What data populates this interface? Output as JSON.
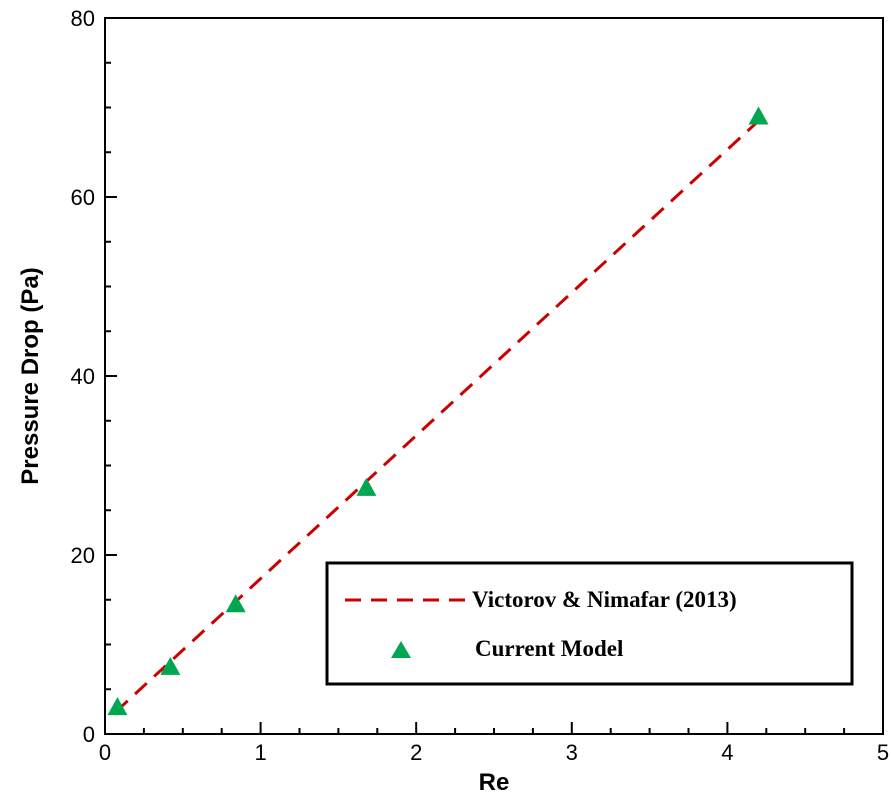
{
  "chart_data": {
    "type": "line",
    "xlabel": "Re",
    "ylabel": "Pressure Drop (Pa)",
    "xlim": [
      0,
      5
    ],
    "ylim": [
      0,
      80
    ],
    "x_ticks": [
      "0",
      "1",
      "2",
      "3",
      "4",
      "5"
    ],
    "y_ticks": [
      "0",
      "20",
      "40",
      "60",
      "80"
    ],
    "grid": false,
    "legend_position": "bottom-right",
    "series": [
      {
        "name": "Victorov & Nimafar (2013)",
        "style": "dashed-line",
        "color": "#cc0000",
        "x": [
          0.07,
          4.2
        ],
        "y": [
          2.5,
          68.5
        ]
      },
      {
        "name": "Current Model",
        "style": "triangle-markers",
        "color": "#00a651",
        "x": [
          0.08,
          0.42,
          0.84,
          1.68,
          4.2
        ],
        "y": [
          3.0,
          7.5,
          14.5,
          27.5,
          69.0
        ]
      }
    ]
  }
}
